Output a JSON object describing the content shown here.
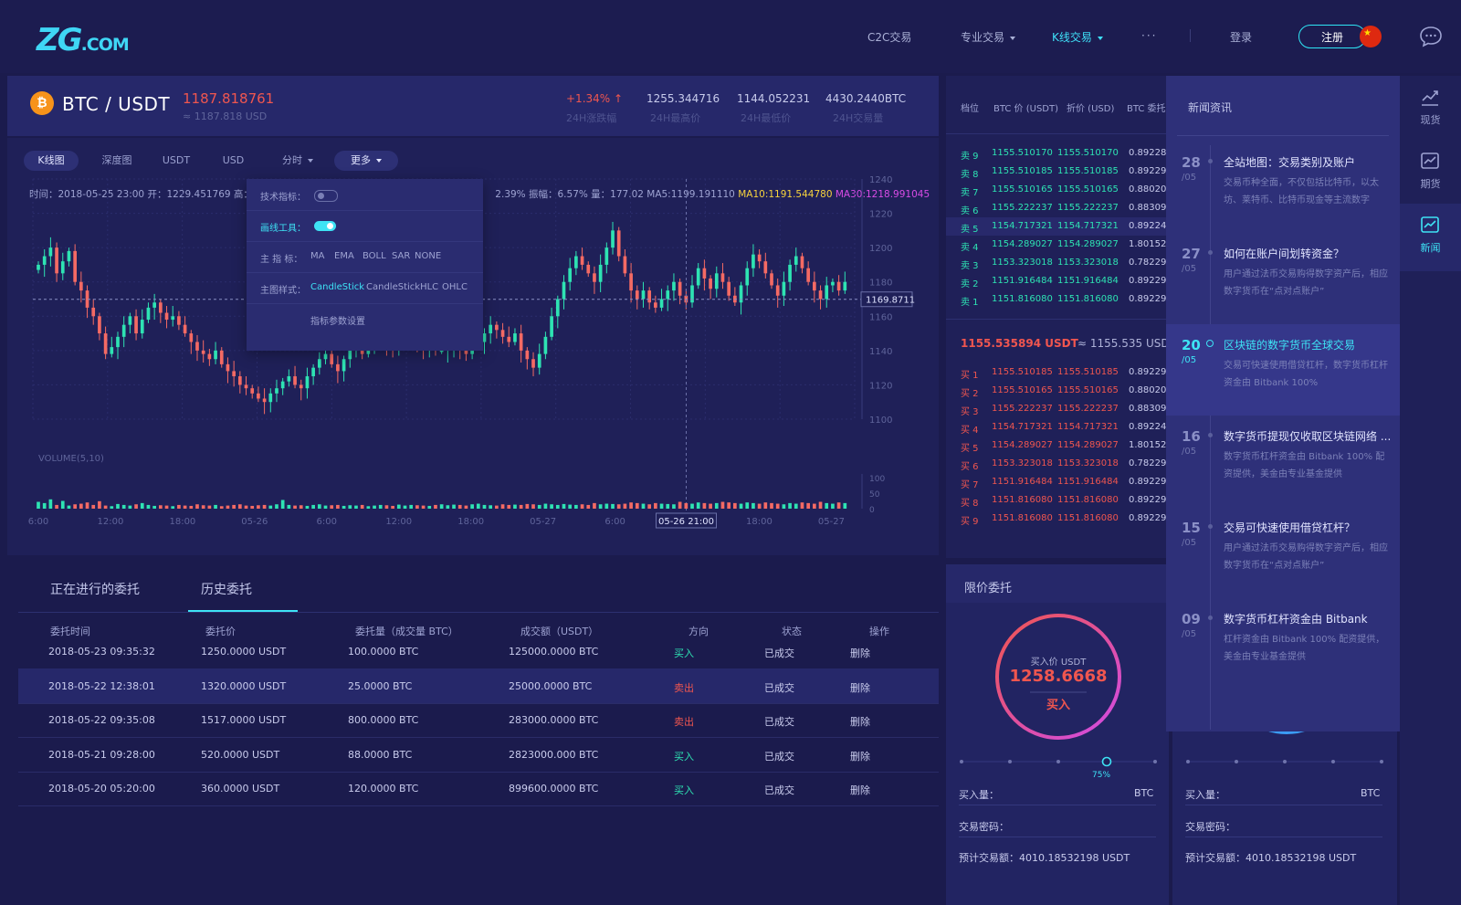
{
  "brand": {
    "logo_main": "ZG",
    "logo_suffix": ".COM"
  },
  "nav": {
    "items": [
      {
        "label": "C2C交易",
        "dropdown": false
      },
      {
        "label": "专业交易",
        "dropdown": true
      },
      {
        "label": "K线交易",
        "dropdown": true,
        "active": true
      },
      {
        "label": "···",
        "dropdown": false
      }
    ],
    "login": "登录",
    "register": "注册"
  },
  "ticker": {
    "pair": "BTC / USDT",
    "price": "1187.818761",
    "price_approx": "≈ 1187.818 USD",
    "stats": [
      {
        "value": "+1.34% ↑",
        "label": "24H涨跌幅",
        "color": "#f0564f"
      },
      {
        "value": "1255.344716",
        "label": "24H最高价"
      },
      {
        "value": "1144.052231",
        "label": "24H最低价"
      },
      {
        "value": "4430.2440BTC",
        "label": "24H交易量"
      }
    ]
  },
  "chart_tabs": [
    {
      "label": "K线图",
      "active": true
    },
    {
      "label": "深度图"
    },
    {
      "label": "USDT"
    },
    {
      "label": "USD"
    },
    {
      "label": "分时",
      "dropdown": true
    },
    {
      "label": "更多",
      "dropdown": true
    }
  ],
  "chart_info": {
    "left": "时间：2018-05-25 23:00  开：1229.451769  高：12",
    "right": "2.39%  振幅：6.57%  量：177.02  MA5:1199.191110",
    "ma10": "MA10:1191.544780",
    "ma30": "MA30:1218.991045"
  },
  "dropdown": {
    "tech_label": "技术指标：",
    "draw_label": "画线工具：",
    "main_label": "主  指  标：",
    "main_options": [
      "MA",
      "EMA",
      "BOLL",
      "SAR",
      "NONE"
    ],
    "style_label": "主图样式：",
    "style_options": [
      "CandleStick",
      "CandleStickHLC",
      "OHLC"
    ],
    "settings": "指标参数设置"
  },
  "chart_data": {
    "type": "candlestick",
    "y_ticks": [
      "1240",
      "1220",
      "1200",
      "1180",
      "1160",
      "1140",
      "1120",
      "1100"
    ],
    "ylim": [
      1100,
      1240
    ],
    "current_price_label": "1169.8711",
    "current_price": 1169.8711,
    "volume_title": "VOLUME(5,10)",
    "volume_ticks": [
      "100",
      "50",
      "0"
    ],
    "volume_ylim": [
      0,
      100
    ],
    "x_ticks": [
      "6:00",
      "12:00",
      "18:00",
      "05-26",
      "6:00",
      "12:00",
      "18:00",
      "05-27",
      "6:00",
      "",
      "18:00",
      "05-27"
    ],
    "cursor_label": "05-26 21:00",
    "up_color": "#2ee3b3",
    "down_color": "#f46a64",
    "closes": [
      1190,
      1195,
      1200,
      1185,
      1192,
      1198,
      1180,
      1175,
      1165,
      1160,
      1150,
      1138,
      1142,
      1148,
      1155,
      1160,
      1150,
      1158,
      1165,
      1168,
      1162,
      1158,
      1160,
      1155,
      1150,
      1145,
      1140,
      1138,
      1135,
      1140,
      1132,
      1128,
      1125,
      1120,
      1118,
      1115,
      1112,
      1110,
      1115,
      1118,
      1122,
      1125,
      1120,
      1118,
      1125,
      1130,
      1135,
      1138,
      1132,
      1128,
      1135,
      1140,
      1142,
      1138,
      1145,
      1148,
      1150,
      1142,
      1140,
      1145,
      1148,
      1150,
      1145,
      1140,
      1142,
      1140,
      1140,
      1142,
      1145,
      1140,
      1138,
      1142,
      1145,
      1150,
      1155,
      1152,
      1148,
      1145,
      1150,
      1140,
      1135,
      1130,
      1138,
      1148,
      1160,
      1170,
      1180,
      1188,
      1195,
      1190,
      1185,
      1180,
      1190,
      1200,
      1210,
      1195,
      1185,
      1175,
      1170,
      1175,
      1168,
      1165,
      1170,
      1175,
      1180,
      1172,
      1168,
      1178,
      1188,
      1182,
      1176,
      1185,
      1180,
      1172,
      1168,
      1178,
      1188,
      1196,
      1192,
      1185,
      1178,
      1172,
      1180,
      1190,
      1195,
      1188,
      1180,
      1175,
      1170,
      1178,
      1180,
      1175,
      1180
    ],
    "volumes": [
      22,
      18,
      30,
      12,
      25,
      10,
      14,
      16,
      20,
      12,
      24,
      10,
      8,
      15,
      12,
      10,
      14,
      18,
      12,
      9,
      11,
      10,
      8,
      12,
      10,
      9,
      14,
      11,
      10,
      12,
      8,
      10,
      12,
      14,
      10,
      9,
      11,
      12,
      10,
      14,
      28,
      12,
      10,
      11,
      9,
      12,
      14,
      10,
      11,
      12,
      9,
      11,
      10,
      12,
      8,
      10,
      12,
      11,
      9,
      13,
      10,
      12,
      11,
      10,
      9,
      12,
      14,
      11,
      13,
      12,
      10,
      14,
      16,
      12,
      11,
      10,
      14,
      12,
      13,
      12,
      15,
      14,
      12,
      16,
      14,
      12,
      15,
      13,
      12,
      14,
      12,
      18,
      14,
      16,
      15,
      14,
      16,
      20,
      18,
      16,
      14,
      18,
      16,
      15,
      14,
      22,
      18,
      16,
      20,
      18,
      16,
      18,
      22,
      20,
      18,
      16,
      20,
      18,
      16,
      20,
      18,
      16,
      14,
      18,
      16,
      20,
      18,
      16,
      22,
      18,
      16,
      20,
      18
    ]
  },
  "orders": {
    "tabs": [
      {
        "label": "正在进行的委托"
      },
      {
        "label": "历史委托",
        "active": true
      }
    ],
    "headers": [
      "委托时间",
      "委托价",
      "委托量（成交量 BTC）",
      "成交额（USDT）",
      "方向",
      "状态",
      "操作"
    ],
    "rows": [
      {
        "time": "2018-05-23 09:35:32",
        "price": "1250.0000 USDT",
        "amount": "100.0000 BTC",
        "total": "125000.0000 BTC",
        "side": "买入",
        "side_color": "#2ee3b3",
        "status": "已成交",
        "action": "删除"
      },
      {
        "time": "2018-05-22 12:38:01",
        "price": "1320.0000 USDT",
        "amount": "25.0000 BTC",
        "total": "25000.0000 BTC",
        "side": "卖出",
        "side_color": "#f0564f",
        "status": "已成交",
        "action": "删除"
      },
      {
        "time": "2018-05-22 09:35:08",
        "price": "1517.0000 USDT",
        "amount": "800.0000 BTC",
        "total": "283000.0000 BTC",
        "side": "卖出",
        "side_color": "#f0564f",
        "status": "已成交",
        "action": "删除"
      },
      {
        "time": "2018-05-21 09:28:00",
        "price": "520.0000 USDT",
        "amount": "88.0000 BTC",
        "total": "2823000.000 BTC",
        "side": "买入",
        "side_color": "#2ee3b3",
        "status": "已成交",
        "action": "删除"
      },
      {
        "time": "2018-05-20 05:20:00",
        "price": "360.0000 USDT",
        "amount": "120.0000 BTC",
        "total": "899600.0000 BTC",
        "side": "买入",
        "side_color": "#2ee3b3",
        "status": "已成交",
        "action": "删除"
      }
    ]
  },
  "book": {
    "headers": [
      "档位",
      "BTC 价 (USDT)",
      "折价 (USD)",
      "BTC 委托"
    ],
    "asks": [
      {
        "label": "卖 9",
        "price": "1155.510170",
        "usd": "1155.510170",
        "qty": "0.89228"
      },
      {
        "label": "卖 8",
        "price": "1155.510185",
        "usd": "1155.510185",
        "qty": "0.89229"
      },
      {
        "label": "卖 7",
        "price": "1155.510165",
        "usd": "1155.510165",
        "qty": "0.88020"
      },
      {
        "label": "卖 6",
        "price": "1155.222237",
        "usd": "1155.222237",
        "qty": "0.88309"
      },
      {
        "label": "卖 5",
        "price": "1154.717321",
        "usd": "1154.717321",
        "qty": "0.89224"
      },
      {
        "label": "卖 4",
        "price": "1154.289027",
        "usd": "1154.289027",
        "qty": "1.80152"
      },
      {
        "label": "卖 3",
        "price": "1153.323018",
        "usd": "1153.323018",
        "qty": "0.78229"
      },
      {
        "label": "卖 2",
        "price": "1151.916484",
        "usd": "1151.916484",
        "qty": "0.89229"
      },
      {
        "label": "卖 1",
        "price": "1151.816080",
        "usd": "1151.816080",
        "qty": "0.89229"
      }
    ],
    "mid_price": "1155.535894 USDT",
    "mid_approx": "≈ 1155.535 USD",
    "bids": [
      {
        "label": "买 1",
        "price": "1155.510185",
        "usd": "1155.510185",
        "qty": "0.89229"
      },
      {
        "label": "买 2",
        "price": "1155.510165",
        "usd": "1155.510165",
        "qty": "0.88020"
      },
      {
        "label": "买 3",
        "price": "1155.222237",
        "usd": "1155.222237",
        "qty": "0.88309"
      },
      {
        "label": "买 4",
        "price": "1154.717321",
        "usd": "1154.717321",
        "qty": "0.89224"
      },
      {
        "label": "买 5",
        "price": "1154.289027",
        "usd": "1154.289027",
        "qty": "1.80152"
      },
      {
        "label": "买 6",
        "price": "1153.323018",
        "usd": "1153.323018",
        "qty": "0.78229"
      },
      {
        "label": "买 7",
        "price": "1151.916484",
        "usd": "1151.916484",
        "qty": "0.89229"
      },
      {
        "label": "买 8",
        "price": "1151.816080",
        "usd": "1151.816080",
        "qty": "0.89229"
      },
      {
        "label": "买 9",
        "price": "1151.816080",
        "usd": "1151.816080",
        "qty": "0.89229"
      }
    ]
  },
  "limit": {
    "title": "限价委托",
    "buy_price_label": "买入价 USDT",
    "buy_price": "1258.6668",
    "buy_button": "买入",
    "slider_value": "75%",
    "slider_fraction": 0.75,
    "qty_label": "买入量：",
    "qty_unit": "BTC",
    "password_label": "交易密码：",
    "estimate_label": "预计交易额：4010.18532198 USDT"
  },
  "news": {
    "title": "新闻资讯",
    "items": [
      {
        "day": "28",
        "month": "/05",
        "title": "全站地图：交易类别及账户",
        "text": "交易币种全面，不仅包括比特币，以太坊、莱特币、比特币现金等主流数字"
      },
      {
        "day": "27",
        "month": "/05",
        "title": "如何在账户间划转资金？",
        "text": "用户通过法币交易购得数字资产后，相应数字货币在“点对点账户”"
      },
      {
        "day": "20",
        "month": "/05",
        "title": "区块链的数字货币全球交易",
        "text": "交易可快速使用借贷杠杆，数字货币杠杆资金由 Bitbank 100%",
        "active": true
      },
      {
        "day": "16",
        "month": "/05",
        "title": "数字货币提现仅收取区块链网络 ...",
        "text": "数字货币杠杆资金由 Bitbank 100% 配资提供，美金由专业基金提供"
      },
      {
        "day": "15",
        "month": "/05",
        "title": "交易可快速使用借贷杠杆？",
        "text": "用户通过法币交易购得数字资产后，相应数字货币在“点对点账户”"
      },
      {
        "day": "09",
        "month": "/05",
        "title": "数字货币杠杆资金由 Bitbank",
        "text": "杠杆资金由 Bitbank 100% 配资提供，美金由专业基金提供"
      }
    ]
  },
  "sidebar": {
    "items": [
      {
        "label": "现货",
        "icon": "chart-up-icon"
      },
      {
        "label": "期货",
        "icon": "futures-icon"
      },
      {
        "label": "新闻",
        "icon": "news-icon",
        "active": true
      }
    ]
  },
  "colors": {
    "accent": "#3ee3f5",
    "up": "#2ee3b3",
    "down": "#f0564f"
  }
}
